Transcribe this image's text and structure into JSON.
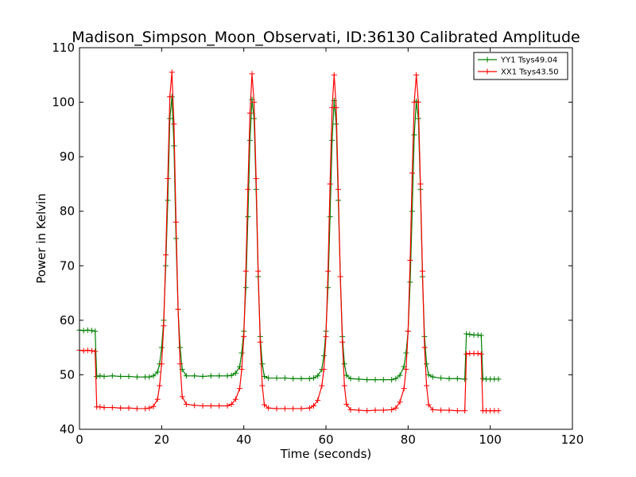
{
  "chart_data": {
    "type": "line",
    "title": "Madison_Simpson_Moon_Observati, ID:36130 Calibrated Amplitude",
    "xlabel": "Time (seconds)",
    "ylabel": "Power in Kelvin",
    "xlim": [
      0,
      120
    ],
    "ylim": [
      40,
      110
    ],
    "xticks": [
      "0",
      "20",
      "40",
      "60",
      "80",
      "100",
      "120"
    ],
    "yticks": [
      "40",
      "50",
      "60",
      "70",
      "80",
      "90",
      "100",
      "110"
    ],
    "grid": false,
    "legend_placement": "top-right",
    "series": [
      {
        "name": "YY1 Tsys49.04",
        "color": "#008000",
        "marker": "plus",
        "x": [
          0,
          1,
          2,
          3,
          3.8,
          4.2,
          5,
          6,
          8,
          10,
          12,
          14,
          16,
          17,
          18,
          19,
          19.5,
          20,
          20.5,
          21,
          21.5,
          22,
          22.5,
          23,
          23.5,
          24,
          24.5,
          25,
          26,
          28,
          30,
          32,
          34,
          36,
          37,
          38,
          39,
          39.5,
          40,
          40.5,
          41,
          41.5,
          42,
          42.5,
          43,
          43.5,
          44,
          44.5,
          45,
          46,
          48,
          50,
          52,
          54,
          56,
          57,
          58,
          59,
          59.5,
          60,
          60.5,
          61,
          61.5,
          62,
          62.5,
          63,
          63.5,
          64,
          64.5,
          65,
          66,
          68,
          70,
          72,
          74,
          76,
          77,
          78,
          79,
          79.5,
          80,
          80.5,
          81,
          81.5,
          82,
          82.5,
          83,
          83.5,
          84,
          84.5,
          85,
          86,
          88,
          90,
          92,
          93.8,
          94.2,
          95,
          96,
          97,
          97.8,
          98.2,
          99,
          100,
          101,
          102
        ],
        "y": [
          58.2,
          58.1,
          58.2,
          58.1,
          58.0,
          49.7,
          49.8,
          49.7,
          49.8,
          49.7,
          49.7,
          49.6,
          49.6,
          49.6,
          49.8,
          50.5,
          52,
          55,
          60,
          70,
          82,
          97,
          101,
          92,
          75,
          62,
          55,
          51,
          49.8,
          49.8,
          49.7,
          49.8,
          49.8,
          49.8,
          49.9,
          50.3,
          51.5,
          54,
          58,
          66,
          79,
          93,
          100.5,
          97,
          84,
          68,
          57,
          52,
          49.7,
          49.4,
          49.4,
          49.4,
          49.3,
          49.3,
          49.3,
          49.4,
          49.8,
          51,
          53.5,
          58,
          66,
          79,
          93,
          100.3,
          96,
          82,
          68,
          57,
          52,
          49.9,
          49.3,
          49.2,
          49.1,
          49.1,
          49.1,
          49.1,
          49.3,
          49.9,
          51.5,
          54,
          58,
          67,
          80,
          94,
          100.2,
          97,
          84,
          68,
          57,
          52,
          50,
          49.6,
          49.4,
          49.3,
          49.3,
          49.2,
          57.5,
          57.4,
          57.3,
          57.3,
          57.2,
          49.3,
          49.2,
          49.2,
          49.2,
          49.2
        ]
      },
      {
        "name": "XX1 Tsys43.50",
        "color": "#ff0000",
        "marker": "plus",
        "x": [
          0,
          1,
          2,
          3,
          3.8,
          4.2,
          5,
          6,
          8,
          10,
          12,
          14,
          16,
          17,
          18,
          19,
          19.5,
          20,
          20.5,
          21,
          21.5,
          22,
          22.5,
          23,
          23.5,
          24,
          24.5,
          25,
          26,
          28,
          30,
          32,
          34,
          36,
          37,
          38,
          39,
          39.5,
          40,
          40.5,
          41,
          41.5,
          42,
          42.5,
          43,
          43.5,
          44,
          44.5,
          45,
          46,
          48,
          50,
          52,
          54,
          56,
          57,
          58,
          59,
          59.5,
          60,
          60.5,
          61,
          61.5,
          62,
          62.5,
          63,
          63.5,
          64,
          64.5,
          65,
          66,
          68,
          70,
          72,
          74,
          76,
          77,
          78,
          79,
          79.5,
          80,
          80.5,
          81,
          81.5,
          82,
          82.5,
          83,
          83.5,
          84,
          84.5,
          85,
          86,
          88,
          90,
          92,
          93.8,
          94.2,
          95,
          96,
          97,
          97.8,
          98.2,
          99,
          100,
          101,
          102
        ],
        "y": [
          54.5,
          54.4,
          54.5,
          54.4,
          54.3,
          44.1,
          44.1,
          44.0,
          44.0,
          43.9,
          43.9,
          43.8,
          43.8,
          43.9,
          44.2,
          45.5,
          48,
          52,
          59,
          72,
          86,
          101,
          105.5,
          96,
          78,
          62,
          52,
          46,
          44.6,
          44.4,
          44.3,
          44.3,
          44.3,
          44.3,
          44.6,
          45.5,
          47.5,
          51,
          57,
          69,
          84,
          98,
          105.2,
          100,
          86,
          69,
          56,
          48,
          44.5,
          43.9,
          43.8,
          43.8,
          43.8,
          43.8,
          43.9,
          44.3,
          45.3,
          48,
          51,
          57,
          69,
          85,
          99,
          105,
          99,
          84,
          68,
          56,
          48,
          44.6,
          43.6,
          43.5,
          43.4,
          43.5,
          43.5,
          43.6,
          43.9,
          45,
          47.5,
          51,
          58,
          71,
          87,
          100,
          105,
          100,
          85,
          69,
          55,
          48,
          44.5,
          43.6,
          43.5,
          43.5,
          43.4,
          43.4,
          53.8,
          53.9,
          53.9,
          53.9,
          53.8,
          43.4,
          43.4,
          43.4,
          43.4,
          43.4
        ]
      }
    ]
  }
}
